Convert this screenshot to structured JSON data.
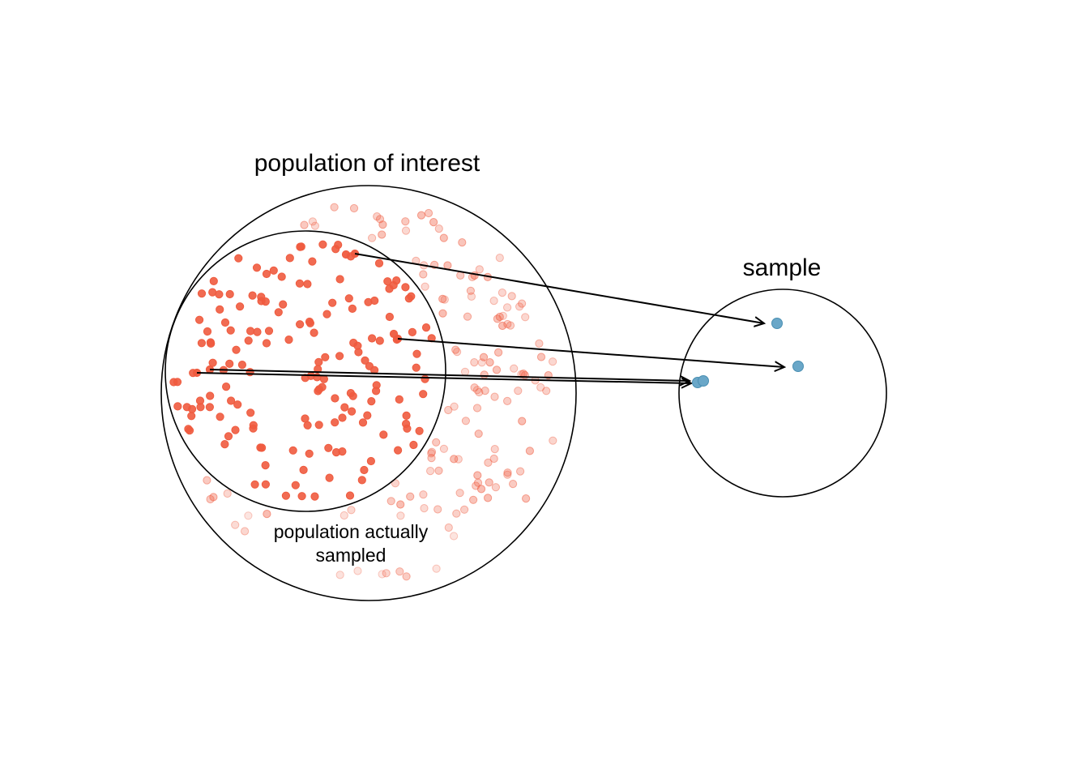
{
  "labels": {
    "population_of_interest": "population of interest",
    "population_actually_sampled_line1": "population actually",
    "population_actually_sampled_line2": "sampled",
    "sample": "sample"
  },
  "colors": {
    "population_point": "#ef5b3f",
    "sample_point": "#6aa7c8",
    "outline": "#000000"
  }
}
